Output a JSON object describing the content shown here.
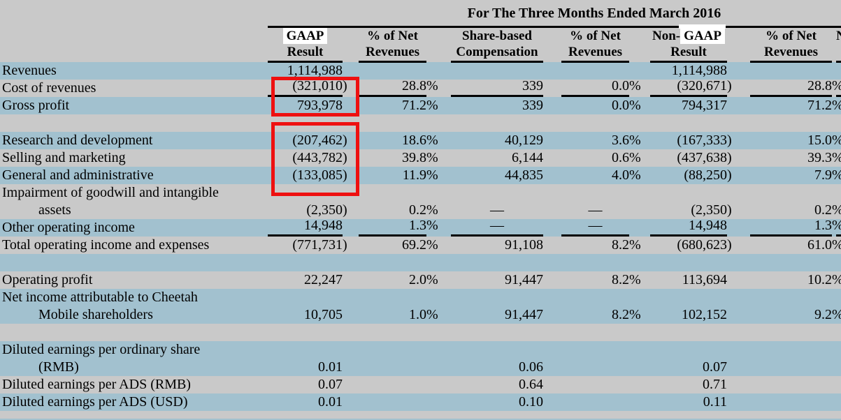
{
  "document": {
    "title": "For The Three Months Ended March 2016",
    "search_highlight_text": "GAAP",
    "colors": {
      "row_highlight_blue": "#a2c1cf",
      "background_gray": "#c9c9c9",
      "annotation_red": "#ee1010",
      "rule_black": "#000000",
      "search_highlight_white": "#ffffff"
    }
  },
  "columns": [
    {
      "line1": "GAAP",
      "line2": "Result",
      "prefix": "",
      "highlight": "GAAP"
    },
    {
      "line1": "% of Net",
      "line2": "Revenues"
    },
    {
      "line1": "Share-based",
      "line2": "Compensation"
    },
    {
      "line1": "% of Net",
      "line2": "Revenues"
    },
    {
      "line1": "Non-GAAP",
      "line2": "Result",
      "prefix": "Non-",
      "highlight": "GAAP"
    },
    {
      "line1": "% of Net",
      "line2": "Revenues"
    },
    {
      "line1": "N",
      "line2": "",
      "clipped": true
    }
  ],
  "rows": [
    {
      "label": "Revenues",
      "values": [
        "1,114,988",
        "",
        "",
        "",
        "1,114,988",
        ""
      ],
      "bg": "blue"
    },
    {
      "label": "Cost of revenues",
      "values": [
        "(321,010)",
        "28.8%",
        "339",
        "0.0%",
        "(320,671)",
        "28.8%"
      ],
      "bg": "gray",
      "rule_below": true
    },
    {
      "label": "Gross profit",
      "values": [
        "793,978",
        "71.2%",
        "339",
        "0.0%",
        "794,317",
        "71.2%"
      ],
      "bg": "blue"
    },
    {
      "label": "",
      "values": [
        "",
        "",
        "",
        "",
        "",
        ""
      ],
      "bg": "gray",
      "blank": true
    },
    {
      "label": "Research and development",
      "values": [
        "(207,462)",
        "18.6%",
        "40,129",
        "3.6%",
        "(167,333)",
        "15.0%"
      ],
      "bg": "blue"
    },
    {
      "label": "Selling and marketing",
      "values": [
        "(443,782)",
        "39.8%",
        "6,144",
        "0.6%",
        "(437,638)",
        "39.3%"
      ],
      "bg": "gray"
    },
    {
      "label": "General and administrative",
      "values": [
        "(133,085)",
        "11.9%",
        "44,835",
        "4.0%",
        "(88,250)",
        "7.9%"
      ],
      "bg": "blue"
    },
    {
      "label": "Impairment of goodwill and intangible",
      "label2": "assets",
      "values": [
        "(2,350)",
        "0.2%",
        "—",
        "—",
        "(2,350)",
        "0.2%"
      ],
      "bg": "gray"
    },
    {
      "label": "Other operating income",
      "values": [
        "14,948",
        "1.3%",
        "—",
        "—",
        "14,948",
        "1.3%"
      ],
      "bg": "blue",
      "rule_below": true
    },
    {
      "label": "Total operating income and expenses",
      "values": [
        "(771,731)",
        "69.2%",
        "91,108",
        "8.2%",
        "(680,623)",
        "61.0%"
      ],
      "bg": "gray"
    },
    {
      "label": "",
      "values": [
        "",
        "",
        "",
        "",
        "",
        ""
      ],
      "bg": "blue",
      "blank": true
    },
    {
      "label": "Operating profit",
      "values": [
        "22,247",
        "2.0%",
        "91,447",
        "8.2%",
        "113,694",
        "10.2%"
      ],
      "bg": "gray"
    },
    {
      "label": "Net income attributable to Cheetah",
      "label2": "Mobile shareholders",
      "values": [
        "10,705",
        "1.0%",
        "91,447",
        "8.2%",
        "102,152",
        "9.2%"
      ],
      "bg": "blue"
    },
    {
      "label": "",
      "values": [
        "",
        "",
        "",
        "",
        "",
        ""
      ],
      "bg": "gray",
      "blank": true
    },
    {
      "label": "Diluted earnings per ordinary share",
      "label2": "(RMB)",
      "values": [
        "0.01",
        "",
        "0.06",
        "",
        "0.07",
        ""
      ],
      "bg": "blue"
    },
    {
      "label": "Diluted earnings per ADS (RMB)",
      "values": [
        "0.07",
        "",
        "0.64",
        "",
        "0.71",
        ""
      ],
      "bg": "gray"
    },
    {
      "label": "Diluted earnings per ADS (USD)",
      "values": [
        "0.01",
        "",
        "0.10",
        "",
        "0.11",
        ""
      ],
      "bg": "blue"
    }
  ],
  "annotations": {
    "red_boxes": [
      {
        "around": "GAAP Result column, Cost of revenues and Gross profit rows",
        "values": [
          "(321,010)",
          "793,978"
        ]
      },
      {
        "around": "GAAP Result column, Research and development through General and administrative rows",
        "values": [
          "(207,462)",
          "(443,782)",
          "(133,085)"
        ]
      }
    ]
  }
}
